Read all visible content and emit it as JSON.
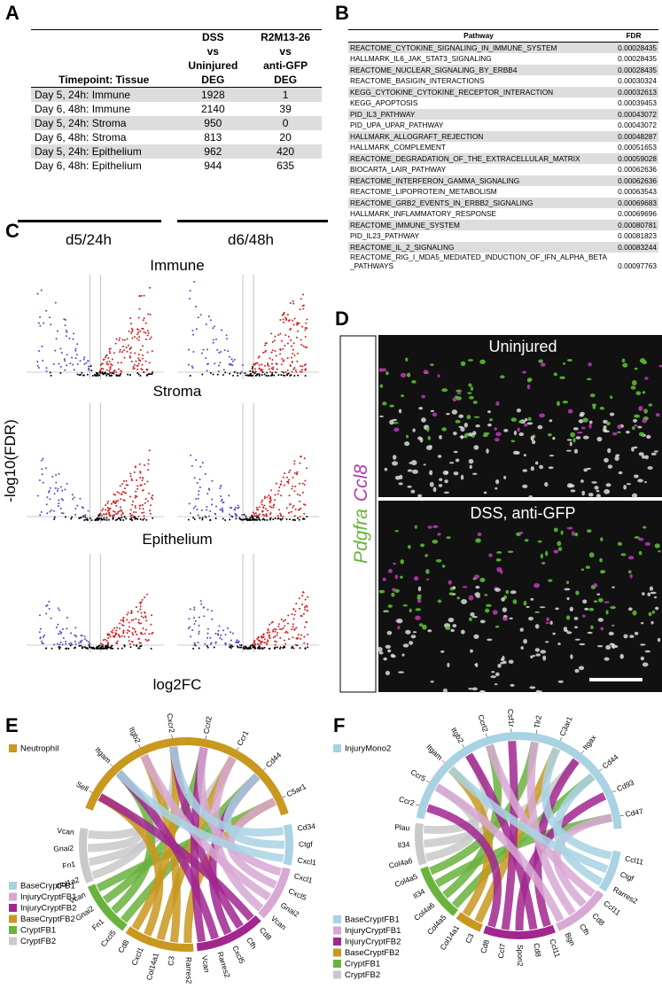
{
  "panel_labels": {
    "a": "A",
    "b": "B",
    "c": "C",
    "d": "D",
    "e": "E",
    "f": "F"
  },
  "table_a": {
    "header": {
      "tissue": "Timepoint: Tissue",
      "dss": [
        "DSS",
        "vs",
        "Uninjured",
        "DEG"
      ],
      "r2m": [
        "R2M13-26",
        "vs",
        "anti-GFP",
        "DEG"
      ]
    },
    "rows": [
      [
        "Day 5, 24h: Immune",
        1928,
        1
      ],
      [
        "Day 6, 48h: Immune",
        2140,
        39
      ],
      [
        "Day 5, 24h: Stroma",
        950,
        0
      ],
      [
        "Day 6, 48h: Stroma",
        813,
        20
      ],
      [
        "Day 5, 24h: Epithelium",
        962,
        420
      ],
      [
        "Day 6, 48h: Epithelium",
        944,
        635
      ]
    ]
  },
  "table_b": {
    "header": [
      "Pathway",
      "FDR"
    ],
    "rows": [
      [
        "REACTOME_CYTOKINE_SIGNALING_IN_IMMUNE_SYSTEM",
        "0.00028435"
      ],
      [
        "HALLMARK_IL6_JAK_STAT3_SIGNALING",
        "0.00028435"
      ],
      [
        "REACTOME_NUCLEAR_SIGNALING_BY_ERBB4",
        "0.00028435"
      ],
      [
        "REACTOME_BASIGIN_INTERACTIONS",
        "0.00030324"
      ],
      [
        "KEGG_CYTOKINE_CYTOKINE_RECEPTOR_INTERACTION",
        "0.00032613"
      ],
      [
        "KEGG_APOPTOSIS",
        "0.00039453"
      ],
      [
        "PID_IL3_PATHWAY",
        "0.00043072"
      ],
      [
        "PID_UPA_UPAR_PATHWAY",
        "0.00043072"
      ],
      [
        "HALLMARK_ALLOGRAFT_REJECTION",
        "0.00048287"
      ],
      [
        "HALLMARK_COMPLEMENT",
        "0.00051653"
      ],
      [
        "REACTOME_DEGRADATION_OF_THE_EXTRACELLULAR_MATRIX",
        "0.00059028"
      ],
      [
        "BIOCARTA_LAIR_PATHWAY",
        "0.00062636"
      ],
      [
        "REACTOME_INTERFERON_GAMMA_SIGNALING",
        "0.00062636"
      ],
      [
        "REACTOME_LIPOPROTEIN_METABOLISM",
        "0.00063543"
      ],
      [
        "REACTOME_GRB2_EVENTS_IN_ERBB2_SIGNALING",
        "0.00069683"
      ],
      [
        "HALLMARK_INFLAMMATORY_RESPONSE",
        "0.00069696"
      ],
      [
        "REACTOME_IMMUNE_SYSTEM",
        "0.00080781"
      ],
      [
        "PID_IL23_PATHWAY",
        "0.00081823"
      ],
      [
        "REACTOME_IL_2_SIGNALING",
        "0.00083244"
      ],
      [
        "REACTOME_RIG_I_MDA5_MEDIATED_INDUCTION_OF_IFN_ALPHA_BETA_PATHWAYS",
        "0.00097763"
      ]
    ]
  },
  "volcano": {
    "col_titles": [
      "d5/24h",
      "d6/48h"
    ],
    "row_titles": [
      "Immune",
      "Stroma",
      "Epithelium"
    ],
    "y_label": "-log10(FDR)",
    "x_label": "log2FC"
  },
  "images": {
    "top_label": "Uninjured",
    "bottom_label": "DSS, anti-GFP",
    "stain_1": "Pdgfra",
    "stain_2": "Ccl8"
  },
  "chords": {
    "e": {
      "receptor": {
        "name": "Neutrophil",
        "color": "#c8981f",
        "genes": [
          "Sell",
          "Itgam",
          "Itgb2",
          "Cxcr2",
          "Ccrl2",
          "Ccr1",
          "Cd44",
          "C5ar1"
        ]
      },
      "legend": [
        {
          "name": "BaseCryptFB1",
          "color": "#a9d2e3",
          "genes": [
            "Cxcl1",
            "Ctgf",
            "Cd34"
          ]
        },
        {
          "name": "InjuryCryptFB1",
          "color": "#d7a8d3",
          "genes": [
            "Vcan",
            "Gnai2",
            "Cxcl5",
            "Cxcl1"
          ]
        },
        {
          "name": "InjuryCryptFB2",
          "color": "#a1278f",
          "genes": [
            "Vcan",
            "Rarres2",
            "Cxcl5",
            "Cfh",
            "Cd8"
          ]
        },
        {
          "name": "BaseCryptFB2",
          "color": "#c8981f",
          "genes": [
            "Cd8",
            "Cxcl1",
            "Col14a1",
            "C3",
            "Rarres2"
          ]
        },
        {
          "name": "CryptFB1",
          "color": "#6ab23e",
          "genes": [
            "Vcan",
            "Gnai2",
            "Fn1",
            "Cxcl5"
          ]
        },
        {
          "name": "CryptFB2",
          "color": "#c9c9c9",
          "genes": [
            "Vcan",
            "Gnai2",
            "Fn1",
            "Col1a2"
          ]
        }
      ]
    },
    "f": {
      "receptor": {
        "name": "InjuryMono2",
        "color": "#a9d2e3",
        "genes": [
          "Ccr2",
          "Ccr5",
          "Itgam",
          "Itgb2",
          "Ccrl2",
          "Csf1r",
          "Tlr2",
          "C3ar1",
          "Itgax",
          "Cd44",
          "Cd93",
          "Cd47"
        ]
      },
      "legend": [
        {
          "name": "BaseCryptFB1",
          "color": "#a9d2e3",
          "genes": [
            "Rarres2",
            "Ctgf",
            "Ccl11"
          ]
        },
        {
          "name": "InjuryCryptFB1",
          "color": "#d7a8d3",
          "genes": [
            "Bgn",
            "Cfh",
            "Cd8",
            "Ccl11"
          ]
        },
        {
          "name": "InjuryCryptFB2",
          "color": "#a1278f",
          "genes": [
            "Cd8",
            "Ccl7",
            "Spon2",
            "Cd8",
            "Ccl11"
          ]
        },
        {
          "name": "BaseCryptFB2",
          "color": "#c8981f",
          "genes": [
            "Col14a1",
            "C3"
          ]
        },
        {
          "name": "CryptFB1",
          "color": "#6ab23e",
          "genes": [
            "Col4a5",
            "Il34",
            "Col4a6",
            "Col4a5"
          ]
        },
        {
          "name": "CryptFB2",
          "color": "#c9c9c9",
          "genes": [
            "Plau",
            "Il34",
            "Col4a6"
          ]
        }
      ]
    }
  }
}
